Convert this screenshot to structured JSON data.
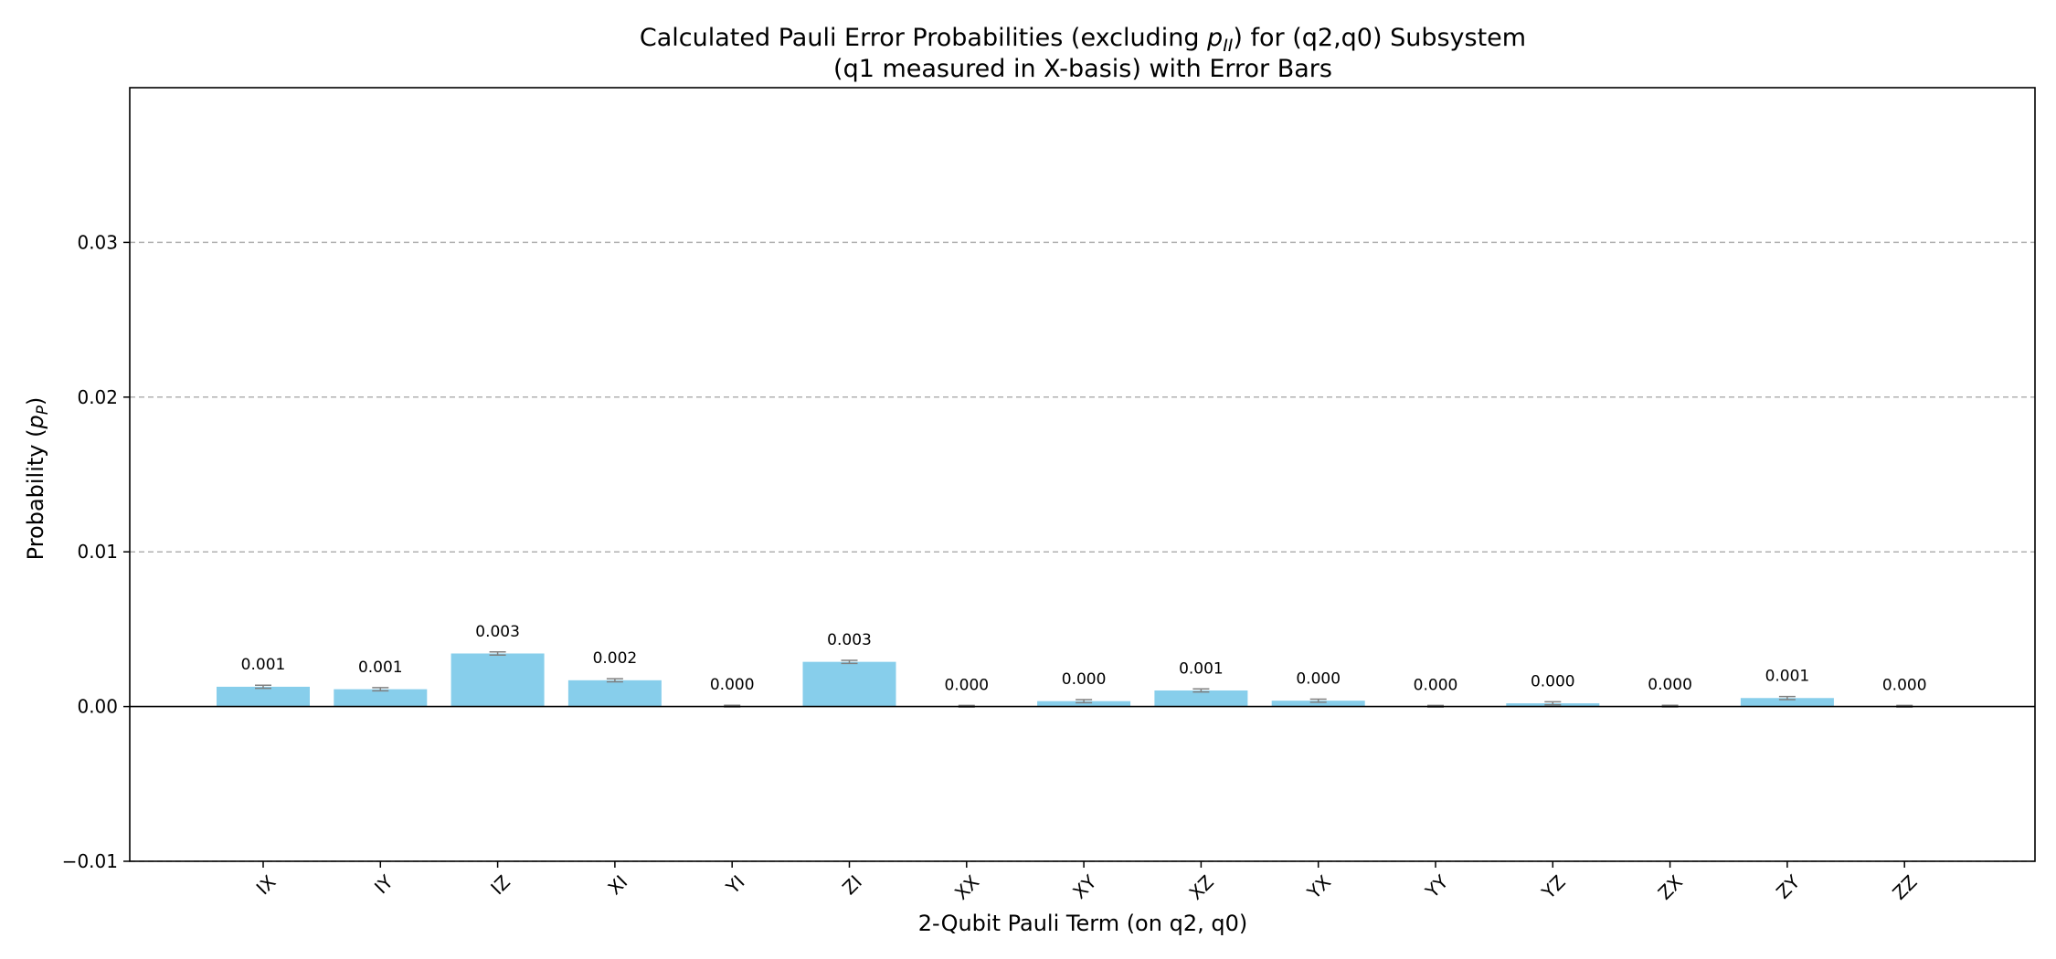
{
  "chart_data": {
    "type": "bar",
    "title_line1_pre": "Calculated Pauli Error Probabilities (excluding ",
    "title_line1_sym": "p",
    "title_line1_sub": "II",
    "title_line1_post": ") for (q2,q0) Subsystem",
    "title_line2": "(q1 measured in X-basis) with Error Bars",
    "xlabel": "2-Qubit Pauli Term (on q2, q0)",
    "ylabel_pre": "Probability (",
    "ylabel_sym": "p",
    "ylabel_sub": "P",
    "ylabel_post": ")",
    "categories": [
      "IX",
      "IY",
      "IZ",
      "XI",
      "YI",
      "ZI",
      "XX",
      "XY",
      "XZ",
      "YX",
      "YY",
      "YZ",
      "ZX",
      "ZY",
      "ZZ"
    ],
    "values": [
      0.00128,
      0.00112,
      0.00343,
      0.0017,
      3e-05,
      0.00289,
      2e-05,
      0.00035,
      0.00104,
      0.00038,
      2e-05,
      0.00021,
      3e-05,
      0.00055,
      2e-05
    ],
    "errors": [
      0.0001,
      0.0001,
      0.0001,
      0.0001,
      5e-05,
      0.0001,
      5e-05,
      0.0001,
      0.0001,
      0.0001,
      5e-05,
      0.0001,
      5e-05,
      0.0001,
      5e-05
    ],
    "data_labels": [
      "0.001",
      "0.001",
      "0.003",
      "0.002",
      "0.000",
      "0.003",
      "0.000",
      "0.000",
      "0.001",
      "0.000",
      "0.000",
      "0.000",
      "0.000",
      "0.001",
      "0.000"
    ],
    "yticks": [
      -0.01,
      0.0,
      0.01,
      0.02,
      0.03
    ],
    "ytick_labels": [
      "−0.01",
      "0.00",
      "0.01",
      "0.02",
      "0.03"
    ],
    "ylim": [
      -0.01,
      0.04
    ],
    "grid": "y-dashed",
    "bar_color": "#87ceeb",
    "errorbar_color": "#808080"
  }
}
